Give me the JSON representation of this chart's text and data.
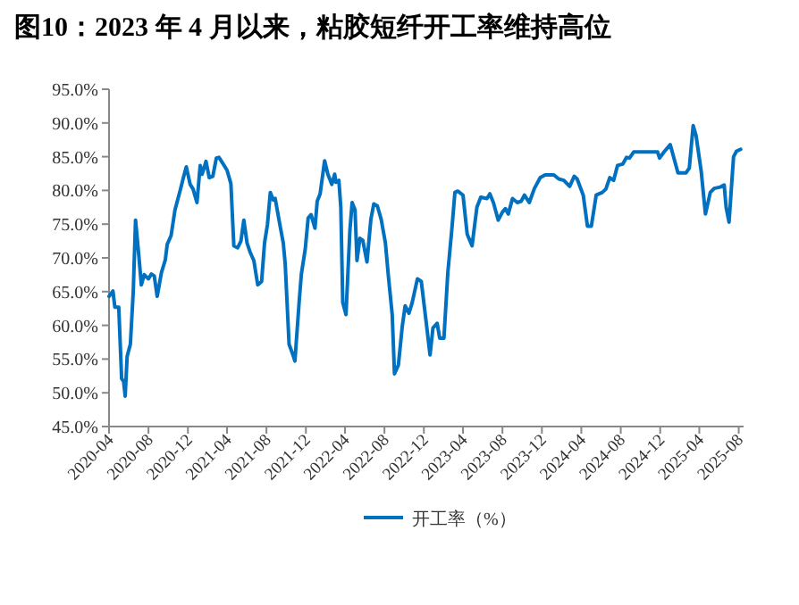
{
  "chart_data": {
    "type": "line",
    "title": "图10：2023 年 4 月以来，粘胶短纤开工率维持高位",
    "x": [
      "2020-04-01",
      "2020-04-13",
      "2020-04-19",
      "2020-05-01",
      "2020-05-10",
      "2020-05-16",
      "2020-05-21",
      "2020-05-27",
      "2020-06-06",
      "2020-06-15",
      "2020-06-22",
      "2020-07-02",
      "2020-07-10",
      "2020-07-19",
      "2020-08-01",
      "2020-08-10",
      "2020-08-19",
      "2020-08-28",
      "2020-09-10",
      "2020-09-22",
      "2020-09-28",
      "2020-10-10",
      "2020-10-22",
      "2020-11-07",
      "2020-11-16",
      "2020-11-26",
      "2020-12-08",
      "2020-12-17",
      "2020-12-29",
      "2021-01-08",
      "2021-01-14",
      "2021-01-26",
      "2021-02-05",
      "2021-02-16",
      "2021-02-27",
      "2021-03-07",
      "2021-03-19",
      "2021-04-01",
      "2021-04-13",
      "2021-04-22",
      "2021-05-04",
      "2021-05-14",
      "2021-05-23",
      "2021-06-02",
      "2021-06-11",
      "2021-06-23",
      "2021-07-05",
      "2021-07-17",
      "2021-07-26",
      "2021-08-04",
      "2021-08-13",
      "2021-08-22",
      "2021-08-28",
      "2021-09-10",
      "2021-09-22",
      "2021-09-28",
      "2021-10-10",
      "2021-10-22",
      "2021-10-28",
      "2021-11-10",
      "2021-11-17",
      "2021-11-29",
      "2021-12-08",
      "2021-12-17",
      "2021-12-29",
      "2022-01-05",
      "2022-01-14",
      "2022-01-28",
      "2022-02-07",
      "2022-02-19",
      "2022-02-28",
      "2022-03-04",
      "2022-03-13",
      "2022-03-19",
      "2022-03-25",
      "2022-04-04",
      "2022-04-16",
      "2022-04-23",
      "2022-05-02",
      "2022-05-08",
      "2022-05-17",
      "2022-05-26",
      "2022-06-08",
      "2022-06-20",
      "2022-06-29",
      "2022-07-10",
      "2022-07-22",
      "2022-08-04",
      "2022-08-13",
      "2022-08-25",
      "2022-09-01",
      "2022-09-13",
      "2022-09-25",
      "2022-10-04",
      "2022-10-16",
      "2022-10-26",
      "2022-11-11",
      "2022-11-23",
      "2022-12-08",
      "2022-12-20",
      "2022-12-29",
      "2023-01-11",
      "2023-01-19",
      "2023-02-01",
      "2023-02-13",
      "2023-02-25",
      "2023-03-07",
      "2023-03-16",
      "2023-04-01",
      "2023-04-14",
      "2023-04-29",
      "2023-05-14",
      "2023-05-26",
      "2023-06-14",
      "2023-06-23",
      "2023-07-04",
      "2023-07-19",
      "2023-08-01",
      "2023-08-10",
      "2023-08-19",
      "2023-09-01",
      "2023-09-16",
      "2023-09-28",
      "2023-10-08",
      "2023-10-23",
      "2023-11-08",
      "2023-11-26",
      "2023-12-11",
      "2024-01-07",
      "2024-01-22",
      "2024-02-07",
      "2024-02-25",
      "2024-03-10",
      "2024-03-19",
      "2024-04-07",
      "2024-04-20",
      "2024-05-02",
      "2024-05-17",
      "2024-06-05",
      "2024-06-16",
      "2024-06-28",
      "2024-07-10",
      "2024-07-22",
      "2024-08-07",
      "2024-08-19",
      "2024-08-28",
      "2024-09-10",
      "2024-10-20",
      "2024-11-23",
      "2024-11-29",
      "2024-12-13",
      "2025-01-01",
      "2025-01-25",
      "2025-02-19",
      "2025-03-01",
      "2025-03-13",
      "2025-03-22",
      "2025-04-07",
      "2025-04-20",
      "2025-05-05",
      "2025-05-17",
      "2025-06-05",
      "2025-06-17",
      "2025-06-23",
      "2025-07-02",
      "2025-07-16",
      "2025-07-25",
      "2025-08-07"
    ],
    "series": [
      {
        "name": "开工率（%）",
        "color": "#0070c0",
        "values": [
          64.3,
          65.1,
          62.7,
          62.7,
          52.1,
          51.7,
          49.5,
          55.4,
          57.2,
          65.1,
          75.6,
          70.4,
          66.0,
          67.5,
          66.9,
          67.6,
          67.3,
          64.3,
          67.8,
          69.7,
          72.0,
          73.3,
          77.1,
          80.0,
          81.7,
          83.5,
          80.9,
          80.2,
          78.2,
          83.7,
          82.4,
          84.3,
          81.9,
          82.1,
          84.8,
          84.9,
          84.0,
          83.0,
          81.0,
          71.8,
          71.5,
          72.5,
          75.6,
          72.2,
          70.9,
          69.6,
          66.0,
          66.5,
          72.2,
          74.9,
          79.7,
          78.6,
          78.8,
          75.3,
          72.2,
          69.1,
          57.2,
          55.6,
          54.7,
          63.4,
          67.6,
          71.3,
          75.9,
          76.4,
          74.4,
          78.4,
          79.5,
          84.4,
          82.4,
          80.9,
          82.4,
          81.2,
          81.5,
          77.5,
          63.4,
          61.6,
          74.0,
          78.2,
          77.1,
          69.6,
          72.9,
          72.6,
          69.4,
          75.7,
          78.0,
          77.7,
          75.7,
          72.2,
          67.4,
          61.6,
          52.8,
          54.1,
          59.8,
          62.9,
          61.8,
          63.4,
          66.9,
          66.5,
          60.5,
          55.6,
          59.6,
          60.3,
          58.1,
          58.1,
          67.8,
          74.0,
          79.7,
          79.9,
          79.3,
          73.5,
          71.8,
          77.5,
          79.0,
          78.8,
          79.5,
          78.2,
          75.6,
          76.8,
          77.3,
          76.5,
          78.8,
          78.2,
          78.4,
          79.3,
          78.2,
          80.3,
          81.9,
          82.3,
          82.3,
          81.7,
          81.5,
          80.6,
          82.1,
          81.7,
          79.3,
          74.7,
          74.7,
          79.3,
          79.7,
          80.2,
          81.9,
          81.5,
          83.7,
          83.9,
          84.9,
          84.8,
          85.7,
          85.7,
          85.7,
          84.8,
          85.7,
          86.8,
          82.6,
          82.6,
          83.3,
          89.6,
          88.1,
          82.8,
          76.5,
          79.7,
          80.3,
          80.5,
          80.8,
          77.5,
          75.3,
          85.0,
          85.8,
          86.1
        ]
      }
    ],
    "xlim": [
      "2020-04-01",
      "2025-08-16"
    ],
    "xticks": [
      "2020-04",
      "2020-08",
      "2020-12",
      "2021-04",
      "2021-08",
      "2021-12",
      "2022-04",
      "2022-08",
      "2022-12",
      "2023-04",
      "2023-08",
      "2023-12",
      "2024-04",
      "2024-08",
      "2024-12",
      "2025-04",
      "2025-08"
    ],
    "ylim": [
      45,
      95
    ],
    "yticks": [
      {
        "value": 45,
        "label": "45.0%"
      },
      {
        "value": 50,
        "label": "50.0%"
      },
      {
        "value": 55,
        "label": "55.0%"
      },
      {
        "value": 60,
        "label": "60.0%"
      },
      {
        "value": 65,
        "label": "65.0%"
      },
      {
        "value": 70,
        "label": "70.0%"
      },
      {
        "value": 75,
        "label": "75.0%"
      },
      {
        "value": 80,
        "label": "80.0%"
      },
      {
        "value": 85,
        "label": "85.0%"
      },
      {
        "value": 90,
        "label": "90.0%"
      },
      {
        "value": 95,
        "label": "95.0%"
      }
    ],
    "grid": false,
    "legend": "bottom"
  }
}
